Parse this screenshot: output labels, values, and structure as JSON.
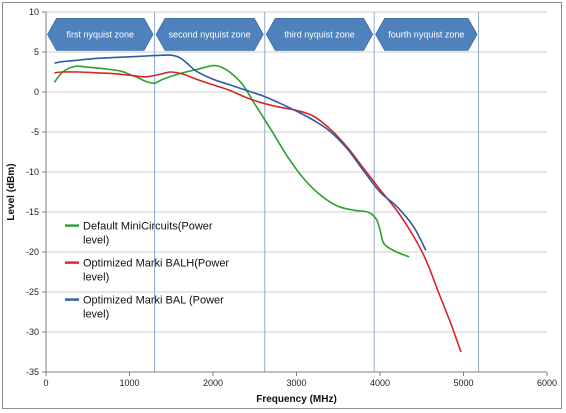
{
  "chart_data": {
    "type": "line",
    "xlabel": "Frequency (MHz)",
    "ylabel": "Level (dBm)",
    "xlim": [
      0,
      6000
    ],
    "ylim": [
      -35,
      10
    ],
    "x_ticks": [
      0,
      1000,
      2000,
      3000,
      4000,
      5000,
      6000
    ],
    "y_ticks": [
      10,
      5,
      0,
      -5,
      -10,
      -15,
      -20,
      -25,
      -30,
      -35
    ],
    "grid": "horizontal",
    "zone_boundaries": [
      1300,
      2620,
      3930,
      5180
    ],
    "zones": [
      {
        "label": "first nyquist zone",
        "x_start": 0,
        "x_end": 1300
      },
      {
        "label": "second nyquist zone",
        "x_start": 1300,
        "x_end": 2620
      },
      {
        "label": "third nyquist zone",
        "x_start": 2620,
        "x_end": 3930
      },
      {
        "label": "fourth nyquist zone",
        "x_start": 3930,
        "x_end": 5180
      }
    ],
    "zone_color": "#4f81bd",
    "legend_position": "left",
    "series": [
      {
        "name": "Default MiniCircuits(Power level)",
        "legend_lines": [
          "Default MiniCircuits(Power",
          "level)"
        ],
        "color": "#2ca02c",
        "x": [
          100,
          200,
          350,
          500,
          700,
          900,
          1000,
          1100,
          1200,
          1300,
          1400,
          1600,
          1800,
          2000,
          2100,
          2200,
          2350,
          2500,
          2700,
          2900,
          3100,
          3300,
          3500,
          3700,
          3850,
          3950,
          4000,
          4050,
          4200,
          4350
        ],
        "values": [
          1.2,
          2.5,
          3.2,
          3.1,
          2.9,
          2.6,
          2.2,
          1.8,
          1.3,
          1.1,
          1.6,
          2.3,
          2.8,
          3.3,
          3.1,
          2.5,
          1.0,
          -1.5,
          -4.8,
          -8.2,
          -11.0,
          -13.0,
          -14.3,
          -14.8,
          -15.0,
          -15.8,
          -17.2,
          -19.0,
          -20.0,
          -20.6
        ]
      },
      {
        "name": "Optimized Marki BALH(Power level)",
        "legend_lines": [
          "Optimized Marki BALH(Power",
          "level)"
        ],
        "color": "#d62728",
        "x": [
          100,
          200,
          400,
          600,
          800,
          1000,
          1200,
          1400,
          1500,
          1650,
          1800,
          2000,
          2200,
          2400,
          2600,
          2800,
          3000,
          3200,
          3400,
          3600,
          3800,
          4000,
          4200,
          4400,
          4550,
          4700,
          4850,
          4970
        ],
        "values": [
          2.4,
          2.5,
          2.5,
          2.4,
          2.3,
          2.1,
          1.9,
          2.3,
          2.5,
          2.2,
          1.6,
          0.9,
          0.2,
          -0.7,
          -1.4,
          -1.9,
          -2.3,
          -3.0,
          -4.6,
          -6.8,
          -9.5,
          -12.2,
          -14.8,
          -18.0,
          -21.0,
          -25.0,
          -29.0,
          -32.5
        ]
      },
      {
        "name": "Optimized Marki BAL (Power level)",
        "legend_lines": [
          "Optimized Marki BAL (Power",
          "level)"
        ],
        "color": "#2e5c9e",
        "x": [
          100,
          200,
          400,
          600,
          800,
          1000,
          1200,
          1400,
          1500,
          1600,
          1700,
          1800,
          2000,
          2200,
          2400,
          2600,
          2800,
          3000,
          3200,
          3400,
          3600,
          3800,
          4000,
          4200,
          4400,
          4550
        ],
        "values": [
          3.6,
          3.8,
          4.0,
          4.2,
          4.3,
          4.4,
          4.5,
          4.6,
          4.6,
          4.3,
          3.5,
          2.6,
          1.6,
          0.9,
          0.2,
          -0.5,
          -1.4,
          -2.4,
          -3.5,
          -4.9,
          -7.0,
          -9.8,
          -12.5,
          -14.3,
          -16.8,
          -19.8
        ]
      }
    ]
  }
}
